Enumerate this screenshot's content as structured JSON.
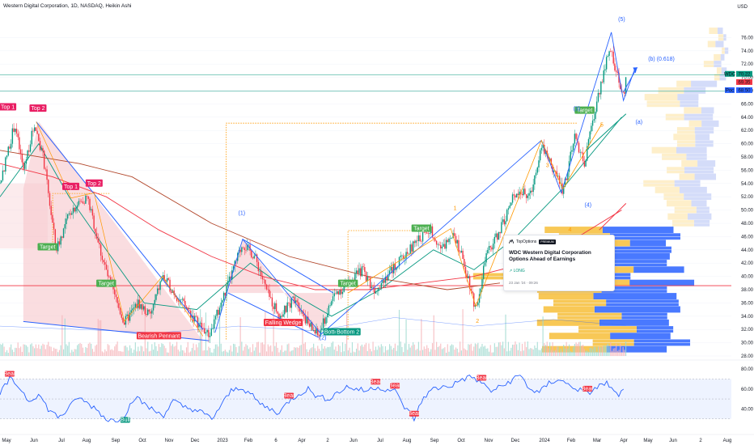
{
  "header": {
    "title": "Western Digital Corporation, 1D, NASDAQ, Heikin Ashi",
    "currency": "USD"
  },
  "chart_data": {
    "type": "candlestick",
    "title": "Western Digital Corporation, 1D, NASDAQ, Heikin Ashi",
    "ylim": [
      28,
      78
    ],
    "y_ticks": [
      28,
      30,
      32,
      34,
      36,
      38,
      40,
      42,
      44,
      46,
      48,
      50,
      52,
      54,
      56,
      58,
      60,
      62,
      64,
      66,
      68,
      70,
      72,
      74,
      76
    ],
    "y_tick_labels": [
      "28.00",
      "30.00",
      "32.00",
      "34.00",
      "36.00",
      "38.00",
      "40.00",
      "42.00",
      "44.00",
      "46.00",
      "48.00",
      "50.00",
      "52.00",
      "54.00",
      "56.00",
      "58.00",
      "60.00",
      "62.00",
      "64.00",
      "66.00",
      "68.00",
      "70.00",
      "72.00",
      "74.00",
      "76.00"
    ],
    "x_tick_labels": [
      "May",
      "Jun",
      "Jul",
      "Aug",
      "Sep",
      "Oct",
      "Nov",
      "Dec",
      "2023",
      "Feb",
      "6",
      "Apr",
      "2",
      "Jun",
      "Jul",
      "Aug",
      "Sep",
      "Oct",
      "Nov",
      "Dec",
      "2024",
      "Feb",
      "Mar",
      "Apr",
      "May",
      "Jun",
      "2",
      "Aug"
    ],
    "price_path": [
      [
        "2022-05-01",
        54
      ],
      [
        "2022-05-18",
        63
      ],
      [
        "2022-05-28",
        56
      ],
      [
        "2022-06-10",
        63
      ],
      [
        "2022-06-20",
        58
      ],
      [
        "2022-07-05",
        44
      ],
      [
        "2022-07-22",
        50
      ],
      [
        "2022-08-10",
        52
      ],
      [
        "2022-08-25",
        44
      ],
      [
        "2022-09-05",
        39
      ],
      [
        "2022-09-22",
        33
      ],
      [
        "2022-10-08",
        36
      ],
      [
        "2022-10-22",
        34
      ],
      [
        "2022-11-05",
        40
      ],
      [
        "2022-11-22",
        37
      ],
      [
        "2022-12-10",
        34
      ],
      [
        "2022-12-29",
        31
      ],
      [
        "2023-01-18",
        38
      ],
      [
        "2023-02-06",
        45
      ],
      [
        "2023-02-20",
        43
      ],
      [
        "2023-03-08",
        37
      ],
      [
        "2023-03-22",
        34
      ],
      [
        "2023-04-08",
        37
      ],
      [
        "2023-04-22",
        33
      ],
      [
        "2023-05-05",
        31
      ],
      [
        "2023-05-22",
        37
      ],
      [
        "2023-06-08",
        39
      ],
      [
        "2023-06-25",
        41
      ],
      [
        "2023-07-08",
        38
      ],
      [
        "2023-07-22",
        40
      ],
      [
        "2023-08-05",
        42
      ],
      [
        "2023-08-18",
        44
      ],
      [
        "2023-09-01",
        46
      ],
      [
        "2023-09-12",
        47
      ],
      [
        "2023-09-25",
        44
      ],
      [
        "2023-10-08",
        47
      ],
      [
        "2023-10-25",
        40
      ],
      [
        "2023-11-03",
        35
      ],
      [
        "2023-11-15",
        43
      ],
      [
        "2023-12-01",
        47
      ],
      [
        "2023-12-20",
        53
      ],
      [
        "2024-01-05",
        52
      ],
      [
        "2024-01-18",
        60
      ],
      [
        "2024-01-29",
        57
      ],
      [
        "2024-02-12",
        53
      ],
      [
        "2024-02-26",
        61
      ],
      [
        "2024-03-08",
        57
      ],
      [
        "2024-03-20",
        65
      ],
      [
        "2024-04-01",
        72
      ],
      [
        "2024-04-08",
        74
      ],
      [
        "2024-04-15",
        70
      ],
      [
        "2024-04-22",
        67
      ],
      [
        "2024-04-25",
        70
      ]
    ],
    "moving_averages": [
      {
        "name": "MA fast (green)",
        "color": "#089981",
        "values": [
          [
            "2022-05-01",
            52
          ],
          [
            "2022-06-15",
            60
          ],
          [
            "2022-07-20",
            52
          ],
          [
            "2022-09-01",
            44
          ],
          [
            "2022-10-15",
            36
          ],
          [
            "2022-12-15",
            35
          ],
          [
            "2023-02-15",
            42
          ],
          [
            "2023-04-10",
            37
          ],
          [
            "2023-05-20",
            34
          ],
          [
            "2023-07-15",
            38
          ],
          [
            "2023-09-15",
            44
          ],
          [
            "2023-11-01",
            41
          ],
          [
            "2023-12-20",
            46
          ],
          [
            "2024-02-10",
            53
          ],
          [
            "2024-04-20",
            64
          ]
        ]
      },
      {
        "name": "MA slow (red)",
        "color": "#f23645",
        "values": [
          [
            "2022-05-01",
            57
          ],
          [
            "2022-07-01",
            55
          ],
          [
            "2022-09-01",
            52
          ],
          [
            "2022-11-01",
            47
          ],
          [
            "2023-01-01",
            43
          ],
          [
            "2023-03-01",
            40
          ],
          [
            "2023-05-01",
            38
          ],
          [
            "2023-07-01",
            38
          ],
          [
            "2023-09-01",
            39
          ],
          [
            "2023-11-01",
            40
          ],
          [
            "2024-01-01",
            42
          ],
          [
            "2024-03-01",
            46
          ],
          [
            "2024-04-20",
            50
          ]
        ]
      },
      {
        "name": "MA mid (maroon)",
        "color": "#b2472b",
        "values": [
          [
            "2022-05-01",
            59
          ],
          [
            "2022-08-01",
            57
          ],
          [
            "2022-10-01",
            55
          ],
          [
            "2023-01-01",
            48
          ],
          [
            "2023-04-01",
            43
          ],
          [
            "2023-07-01",
            40
          ],
          [
            "2023-10-01",
            38
          ],
          [
            "2023-12-01",
            39
          ]
        ]
      }
    ],
    "horizontal_lines": [
      {
        "name": "support",
        "value": 38.6,
        "color": "#f23645"
      },
      {
        "name": "level-a",
        "value": 70.4,
        "color": "#089981"
      },
      {
        "name": "level-b",
        "value": 67.9,
        "color": "#089981"
      }
    ],
    "price_tags": [
      {
        "label": "WDC",
        "value": "70.22",
        "color": "#089981"
      },
      {
        "label": "",
        "value": "69.35",
        "color": "#f23645"
      },
      {
        "label": "Poc",
        "value": "68.50",
        "color": "#2962ff"
      }
    ],
    "pattern_labels": [
      {
        "text": "Top 1",
        "color": "#e91e63",
        "date": "2022-05-10",
        "y": 65.5
      },
      {
        "text": "Top 2",
        "color": "#e91e63",
        "date": "2022-06-14",
        "y": 65.3
      },
      {
        "text": "Top 1",
        "color": "#e91e63",
        "date": "2022-07-22",
        "y": 53.5
      },
      {
        "text": "Top 2",
        "color": "#e91e63",
        "date": "2022-08-18",
        "y": 54.0
      },
      {
        "text": "Target",
        "color": "#4caf50",
        "date": "2022-06-25",
        "y": 44.4
      },
      {
        "text": "Target",
        "color": "#4caf50",
        "date": "2022-09-01",
        "y": 38.9
      },
      {
        "text": "Bearish Pennant",
        "color": "#f23645",
        "date": "2022-11-01",
        "y": 31.0
      },
      {
        "text": "Falling Wedge",
        "color": "#f23645",
        "date": "2023-03-25",
        "y": 33.0
      },
      {
        "text": "Bottom",
        "color": "#089981",
        "date": "2023-05-22",
        "y": 31.6
      },
      {
        "text": "Bottom 2",
        "color": "#089981",
        "date": "2023-06-08",
        "y": 31.6
      },
      {
        "text": "Target",
        "color": "#4caf50",
        "date": "2023-06-08",
        "y": 38.9
      },
      {
        "text": "Target",
        "color": "#4caf50",
        "date": "2023-09-01",
        "y": 47.2
      },
      {
        "text": "Target",
        "color": "#4caf50",
        "date": "2024-03-08",
        "y": 65.0
      }
    ],
    "wave_labels": [
      {
        "text": "(1)",
        "color": "#2962ff",
        "date": "2023-02-05",
        "y": 49.3
      },
      {
        "text": "(2)",
        "color": "#2962ff",
        "date": "2023-05-10",
        "y": 30.5
      },
      {
        "text": "(3)",
        "color": "#2962ff",
        "date": "2024-02-28",
        "y": 65.0
      },
      {
        "text": "(4)",
        "color": "#2962ff",
        "date": "2024-03-12",
        "y": 50.5
      },
      {
        "text": "(5)",
        "color": "#2962ff",
        "date": "2024-04-20",
        "y": 78.5
      },
      {
        "text": "(a)",
        "color": "#2962ff",
        "date": "2024-05-10",
        "y": 63.0
      },
      {
        "text": "(b) (0.618)",
        "color": "#2962ff",
        "date": "2024-06-05",
        "y": 72.5
      },
      {
        "text": "1",
        "color": "#ff9800",
        "date": "2023-10-10",
        "y": 50.0
      },
      {
        "text": "2",
        "color": "#ff9800",
        "date": "2023-11-05",
        "y": 33.0
      },
      {
        "text": "3",
        "color": "#ff9800",
        "date": "2024-01-25",
        "y": 56.5
      },
      {
        "text": "4",
        "color": "#ff9800",
        "date": "2024-02-20",
        "y": 46.8
      },
      {
        "text": "5",
        "color": "#ff9800",
        "date": "2024-03-28",
        "y": 62.6
      }
    ],
    "rsi": {
      "ylim": [
        20,
        85
      ],
      "ticks": [
        "80.00",
        "60.00",
        "40.00"
      ],
      "tick_values": [
        80,
        60,
        40
      ],
      "band": [
        30,
        70
      ],
      "values": [
        55,
        70,
        62,
        48,
        55,
        40,
        32,
        38,
        52,
        46,
        40,
        30,
        28,
        35,
        52,
        45,
        38,
        34,
        48,
        42,
        40,
        36,
        30,
        44,
        58,
        62,
        55,
        45,
        40,
        36,
        48,
        55,
        60,
        52,
        50,
        56,
        62,
        60,
        58,
        62,
        60,
        58,
        42,
        30,
        52,
        60,
        62,
        64,
        70,
        72,
        66,
        58,
        62,
        68,
        74,
        60,
        56,
        66,
        70,
        64,
        60,
        55,
        62,
        66,
        54,
        58
      ],
      "labels": [
        {
          "text": "Bear",
          "color": "#f23645",
          "idx": 1
        },
        {
          "text": "Bull",
          "color": "#089981",
          "idx": 13
        },
        {
          "text": "Bear",
          "color": "#f23645",
          "idx": 30
        },
        {
          "text": "Bear",
          "color": "#f23645",
          "idx": 39
        },
        {
          "text": "Bear",
          "color": "#f23645",
          "idx": 41
        },
        {
          "text": "Bear",
          "color": "#f23645",
          "idx": 43
        },
        {
          "text": "Bear",
          "color": "#f23645",
          "idx": 50
        },
        {
          "text": "Bear",
          "color": "#f23645",
          "idx": 61
        }
      ]
    }
  },
  "idea_card": {
    "brand": "TopOptions",
    "badge": "PREMIUM",
    "title": "WDC Western Digital Corporation Options Ahead of Earnings",
    "position": "LONG",
    "date": "23 Jan '24 · 09:26"
  },
  "colors": {
    "up": "#089981",
    "down": "#f23645",
    "pattern_fill": "#f7c6cc",
    "volume_profile_blue": "#2962ff",
    "volume_profile_yellow": "#f7c244",
    "wave_line": "#2962ff",
    "sub_wave": "#ff9800"
  }
}
